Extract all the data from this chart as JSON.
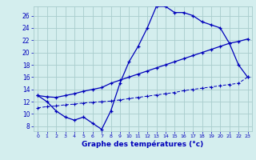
{
  "xlabel": "Graphe des températures (°c)",
  "background_color": "#d4eeee",
  "grid_color": "#a8cccc",
  "line_color": "#0000bb",
  "x_ticks": [
    0,
    1,
    2,
    3,
    4,
    5,
    6,
    7,
    8,
    9,
    10,
    11,
    12,
    13,
    14,
    15,
    16,
    17,
    18,
    19,
    20,
    21,
    22,
    23
  ],
  "y_ticks": [
    8,
    10,
    12,
    14,
    16,
    18,
    20,
    22,
    24,
    26
  ],
  "ylim": [
    7.2,
    27.5
  ],
  "xlim": [
    -0.5,
    23.5
  ],
  "series_max": [
    13,
    12,
    10.5,
    9.5,
    9,
    9.5,
    8.5,
    7.5,
    10.5,
    15,
    18.5,
    21,
    24,
    27.5,
    27.5,
    26.5,
    26.5,
    26,
    25,
    24.5,
    24,
    21.5,
    18,
    16
  ],
  "series_mean": [
    13.0,
    12.8,
    12.7,
    13.0,
    13.3,
    13.7,
    14.0,
    14.3,
    15.0,
    15.5,
    16.0,
    16.5,
    17.0,
    17.5,
    18.0,
    18.5,
    19.0,
    19.5,
    20.0,
    20.5,
    21.0,
    21.5,
    21.8,
    22.2
  ],
  "series_min": [
    11.0,
    11.2,
    11.3,
    11.5,
    11.6,
    11.8,
    11.9,
    12.0,
    12.1,
    12.3,
    12.5,
    12.7,
    12.9,
    13.1,
    13.3,
    13.5,
    13.8,
    14.0,
    14.2,
    14.4,
    14.6,
    14.8,
    15.0,
    16.0
  ]
}
